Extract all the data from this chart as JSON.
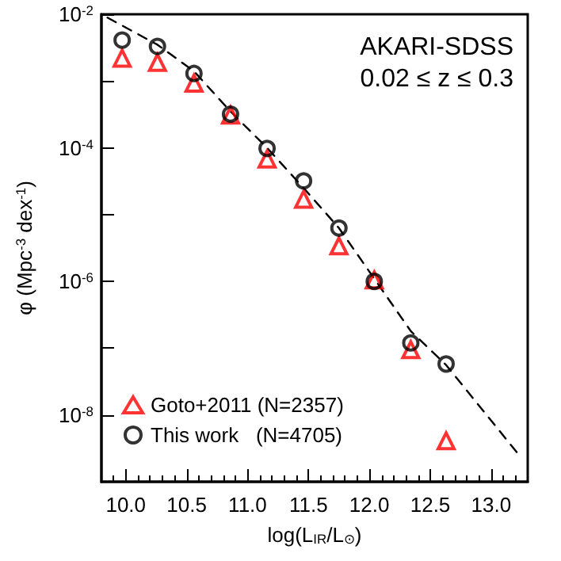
{
  "chart_data": {
    "type": "scatter",
    "xlabel": "log(L$_{IR}$/L$_{⊙}$)",
    "ylabel": "φ (Mpc$^{-3}$ dex$^{-1}$)",
    "annotations": [
      "AKARI-SDSS",
      "0.02 ≤ z ≤ 0.3"
    ],
    "series": [
      {
        "name": "Goto+2011 (N=2357)",
        "color": "#ff0000",
        "marker": "triangle",
        "x": [
          9.97,
          10.26,
          10.56,
          10.86,
          11.16,
          11.46,
          11.75,
          12.04,
          12.34,
          12.63
        ],
        "values": [
          0.0022,
          0.0019,
          0.00093,
          0.00031,
          6.8e-05,
          1.7e-05,
          3.4e-06,
          1.05e-06,
          9.5e-08,
          4.1e-09
        ]
      },
      {
        "name": "This work   (N=4705)",
        "color": "#000000",
        "marker": "circle",
        "x": [
          9.97,
          10.26,
          10.56,
          10.86,
          11.16,
          11.46,
          11.75,
          12.04,
          12.34,
          12.63
        ],
        "values": [
          0.0041,
          0.0033,
          0.0013,
          0.00032,
          9.8e-05,
          3.2e-05,
          6.3e-06,
          1e-06,
          1.2e-07,
          5.8e-08
        ]
      },
      {
        "type": "line",
        "color": "#000000",
        "marker": "none",
        "line_style": "dashed",
        "x": [
          9.85,
          10.26,
          10.56,
          10.86,
          11.16,
          11.46,
          11.75,
          12.04,
          12.34,
          12.63,
          13.23
        ],
        "values": [
          0.0089,
          0.0035,
          0.0014,
          0.00035,
          0.0001,
          2.5e-05,
          6.3e-06,
          1.1e-06,
          1.8e-07,
          5.6e-08,
          2.5e-09
        ]
      }
    ],
    "xlim": [
      9.8,
      13.3
    ],
    "xticks": [
      {
        "value": 10,
        "label": "10.0"
      },
      {
        "value": 10.5,
        "label": "10.5"
      },
      {
        "value": 11,
        "label": "11.0"
      },
      {
        "value": 11.5,
        "label": "11.5"
      },
      {
        "value": 12,
        "label": "12.0"
      },
      {
        "value": 12.5,
        "label": "12.5"
      },
      {
        "value": 13,
        "label": "13.0"
      }
    ],
    "ylim": [
      1e-09,
      0.01
    ],
    "yticks": [
      {
        "value": 0.01,
        "label": "10$^{-2}$"
      },
      {
        "value": 0.001,
        "label": null
      },
      {
        "value": 0.0001,
        "label": "10$^{-4}$"
      },
      {
        "value": 1e-05,
        "label": null
      },
      {
        "value": 1e-06,
        "label": "10$^{-6}$"
      },
      {
        "value": 1e-07,
        "label": null
      },
      {
        "value": 1e-08,
        "label": "10$^{-8}$"
      }
    ],
    "log": "y",
    "grid": false,
    "legend": "bottom left"
  }
}
